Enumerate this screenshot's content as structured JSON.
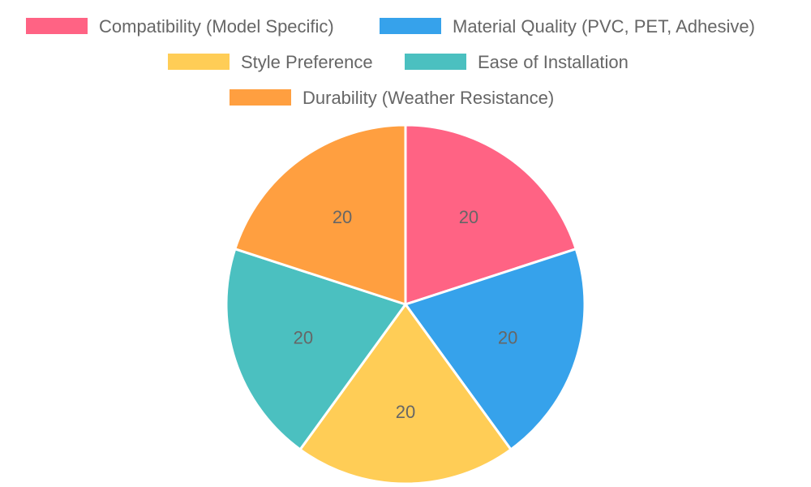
{
  "chart_data": {
    "type": "pie",
    "title": "",
    "legend_position": "top",
    "categories": [
      "Compatibility (Model Specific)",
      "Material Quality (PVC, PET, Adhesive)",
      "Style Preference",
      "Ease of Installation",
      "Durability (Weather Resistance)"
    ],
    "values": [
      20,
      20,
      20,
      20,
      20
    ],
    "data_labels": [
      "20",
      "20",
      "20",
      "20",
      "20"
    ],
    "colors": [
      "#ff6384",
      "#36a2eb",
      "#ffcd56",
      "#4bc0c0",
      "#ff9f40"
    ]
  }
}
